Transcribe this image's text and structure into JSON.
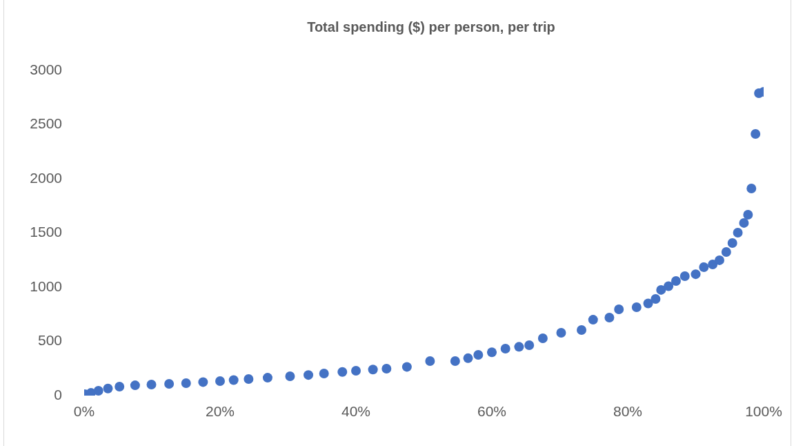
{
  "chart_data": {
    "type": "scatter",
    "title": "Total spending ($) per person, per trip",
    "x": [
      0.1,
      1.0,
      2.1,
      3.5,
      5.2,
      7.5,
      9.9,
      12.5,
      15.0,
      17.5,
      20.0,
      22.0,
      24.2,
      27.0,
      30.3,
      33.0,
      35.3,
      38.0,
      40.0,
      42.5,
      44.5,
      47.5,
      50.9,
      54.6,
      56.5,
      58.0,
      60.0,
      62.0,
      64.0,
      65.5,
      67.5,
      70.2,
      73.2,
      74.9,
      77.3,
      78.7,
      81.3,
      83.0,
      84.1,
      84.9,
      86.0,
      87.1,
      88.4,
      90.0,
      91.2,
      92.5,
      93.5,
      94.5,
      95.4,
      96.2,
      97.1,
      97.7,
      98.2,
      98.8,
      99.3,
      100.0
    ],
    "series": [
      {
        "color": "#4472c4",
        "values": [
          13,
          25,
          45,
          65,
          83,
          95,
          102,
          108,
          115,
          125,
          134,
          143,
          153,
          165,
          178,
          190,
          204,
          218,
          229,
          240,
          248,
          265,
          318,
          318,
          345,
          376,
          400,
          433,
          450,
          465,
          529,
          580,
          605,
          700,
          720,
          796,
          815,
          850,
          892,
          975,
          1010,
          1057,
          1102,
          1120,
          1185,
          1210,
          1249,
          1325,
          1408,
          1503,
          1593,
          1669,
          1911,
          2414,
          2790,
          2803
        ]
      }
    ],
    "xlim": [
      0,
      100
    ],
    "xticks": [
      {
        "value": 0,
        "label": "0%"
      },
      {
        "value": 20,
        "label": "20%"
      },
      {
        "value": 40,
        "label": "40%"
      },
      {
        "value": 60,
        "label": "60%"
      },
      {
        "value": 80,
        "label": "80%"
      },
      {
        "value": 100,
        "label": "100%"
      }
    ],
    "ylim": [
      0,
      3000
    ],
    "yticks": [
      0,
      500,
      1000,
      1500,
      2000,
      2500,
      3000
    ],
    "marker": "circle",
    "legend": false,
    "grid": false
  }
}
